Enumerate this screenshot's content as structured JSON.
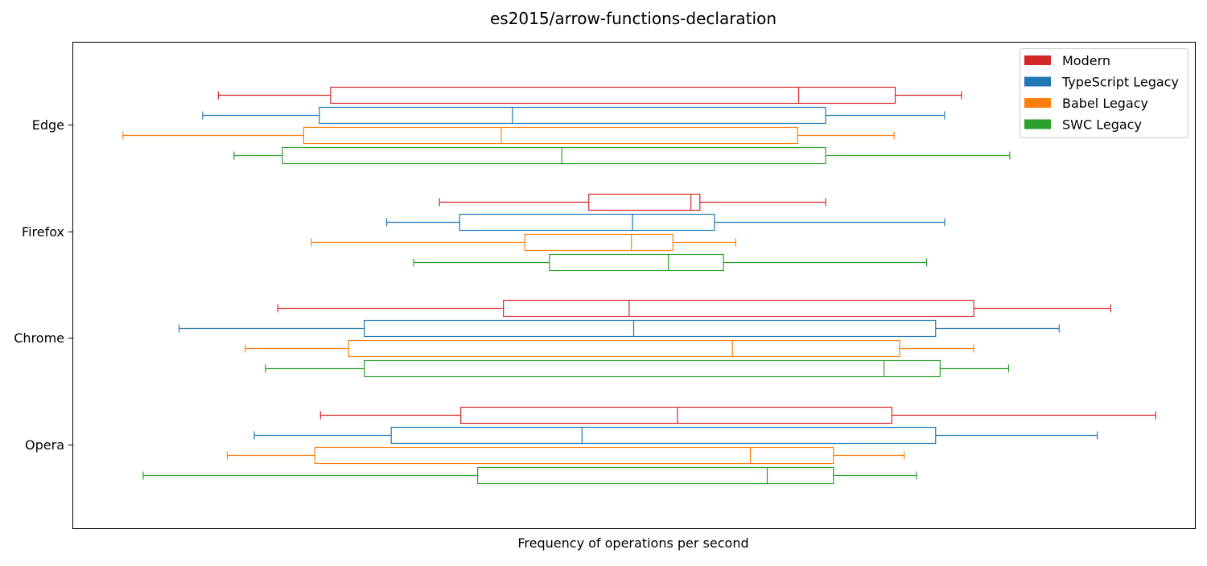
{
  "chart_data": {
    "type": "boxplot",
    "orientation": "horizontal",
    "title": "es2015/arrow-functions-declaration",
    "xlabel": "Frequency of operations per second",
    "ylabel": "",
    "x_ticks_shown": false,
    "grid": false,
    "legend_position": "upper right",
    "categories": [
      "Edge",
      "Firefox",
      "Chrome",
      "Opera"
    ],
    "series": [
      {
        "name": "Modern",
        "color": "#d62728",
        "boxes": [
          {
            "whislo": 13.0,
            "q1": 23.0,
            "median": 64.7,
            "q3": 73.3,
            "whishi": 79.2
          },
          {
            "whislo": 32.7,
            "q1": 46.0,
            "median": 55.1,
            "q3": 55.9,
            "whishi": 67.1
          },
          {
            "whislo": 18.3,
            "q1": 38.4,
            "median": 49.6,
            "q3": 80.3,
            "whishi": 92.5
          },
          {
            "whislo": 22.1,
            "q1": 34.6,
            "median": 53.9,
            "q3": 73.0,
            "whishi": 96.5
          }
        ]
      },
      {
        "name": "TypeScript Legacy",
        "color": "#1f77b4",
        "boxes": [
          {
            "whislo": 11.6,
            "q1": 22.0,
            "median": 39.2,
            "q3": 67.1,
            "whishi": 77.7
          },
          {
            "whislo": 28.0,
            "q1": 34.5,
            "median": 49.9,
            "q3": 57.2,
            "whishi": 77.7
          },
          {
            "whislo": 9.5,
            "q1": 26.0,
            "median": 50.0,
            "q3": 76.9,
            "whishi": 87.9
          },
          {
            "whislo": 16.2,
            "q1": 28.4,
            "median": 45.4,
            "q3": 76.9,
            "whishi": 91.3
          }
        ]
      },
      {
        "name": "Babel Legacy",
        "color": "#ff7f0e",
        "boxes": [
          {
            "whislo": 4.5,
            "q1": 20.6,
            "median": 38.2,
            "q3": 64.6,
            "whishi": 73.2
          },
          {
            "whislo": 21.3,
            "q1": 40.3,
            "median": 49.8,
            "q3": 53.5,
            "whishi": 59.1
          },
          {
            "whislo": 15.4,
            "q1": 24.6,
            "median": 58.8,
            "q3": 73.7,
            "whishi": 80.3
          },
          {
            "whislo": 13.8,
            "q1": 21.6,
            "median": 60.4,
            "q3": 67.8,
            "whishi": 74.1
          }
        ]
      },
      {
        "name": "SWC Legacy",
        "color": "#2ca02c",
        "boxes": [
          {
            "whislo": 14.4,
            "q1": 18.7,
            "median": 43.6,
            "q3": 67.1,
            "whishi": 83.5
          },
          {
            "whislo": 30.4,
            "q1": 42.5,
            "median": 53.1,
            "q3": 58.0,
            "whishi": 76.1
          },
          {
            "whislo": 17.2,
            "q1": 26.0,
            "median": 72.3,
            "q3": 77.3,
            "whishi": 83.4
          },
          {
            "whislo": 6.3,
            "q1": 36.1,
            "median": 61.9,
            "q3": 67.8,
            "whishi": 75.2
          }
        ]
      }
    ]
  }
}
